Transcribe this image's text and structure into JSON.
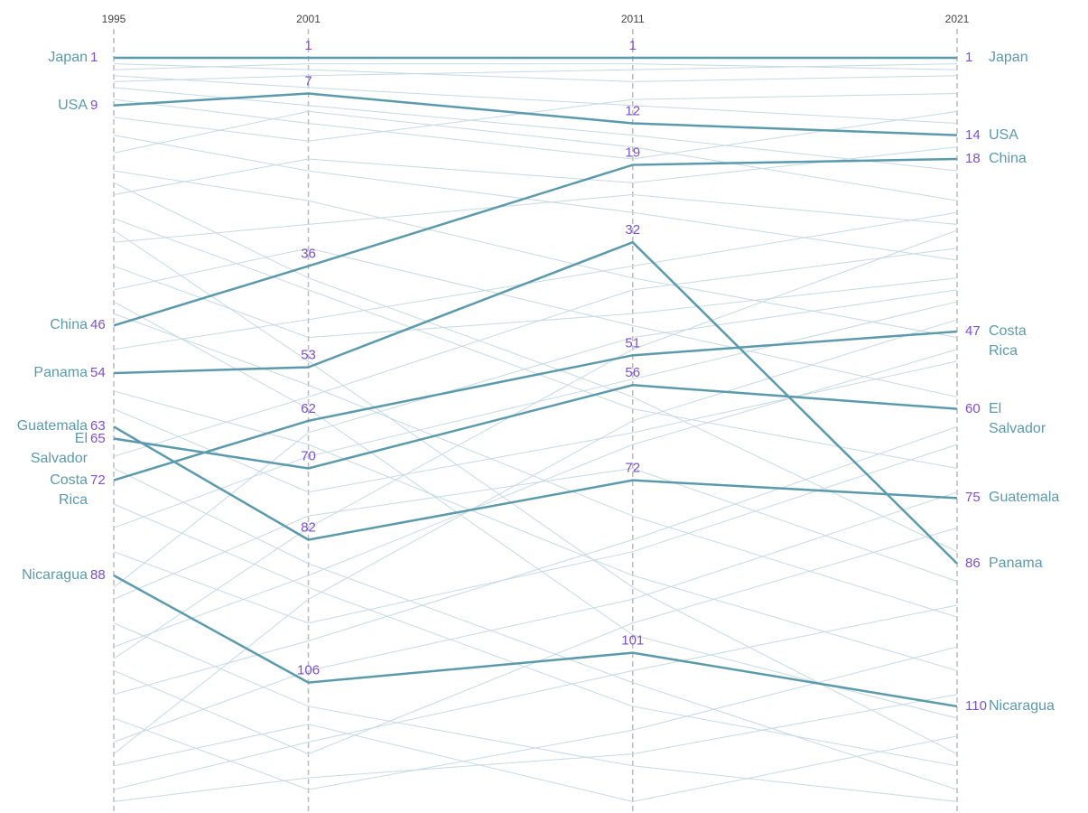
{
  "chart_data": {
    "type": "bump",
    "x": [
      1995,
      2001,
      2011,
      2021
    ],
    "xlim": [
      1995,
      2021
    ],
    "ylim": [
      1,
      128
    ],
    "y_inverted": true,
    "wrap_labels": true,
    "line_color": "#5b9aad",
    "label_color": "#5b9aad",
    "value_color": "#7b4fd1",
    "background_color": "#c5dae3",
    "series": [
      {
        "name": "Japan",
        "values": [
          1,
          1,
          1,
          1
        ]
      },
      {
        "name": "USA",
        "values": [
          9,
          7,
          12,
          14
        ]
      },
      {
        "name": "China",
        "values": [
          46,
          36,
          19,
          18
        ]
      },
      {
        "name": "Panama",
        "values": [
          54,
          53,
          32,
          86
        ]
      },
      {
        "name": "Guatemala",
        "values": [
          63,
          82,
          72,
          75
        ]
      },
      {
        "name": "El Salvador",
        "values": [
          65,
          70,
          56,
          60
        ]
      },
      {
        "name": "Costa Rica",
        "values": [
          72,
          62,
          51,
          47
        ]
      },
      {
        "name": "Nicaragua",
        "values": [
          88,
          106,
          101,
          110
        ]
      }
    ],
    "background_series": [
      {
        "values": [
          2,
          3,
          5,
          4
        ]
      },
      {
        "values": [
          3,
          2,
          2,
          3
        ]
      },
      {
        "values": [
          4,
          6,
          9,
          12
        ]
      },
      {
        "values": [
          5,
          4,
          3,
          2
        ]
      },
      {
        "values": [
          6,
          9,
          14,
          20
        ]
      },
      {
        "values": [
          8,
          12,
          18,
          10
        ]
      },
      {
        "values": [
          11,
          15,
          8,
          7
        ]
      },
      {
        "values": [
          14,
          20,
          27,
          35
        ]
      },
      {
        "values": [
          17,
          10,
          16,
          25
        ]
      },
      {
        "values": [
          20,
          25,
          38,
          48
        ]
      },
      {
        "values": [
          24,
          18,
          22,
          16
        ]
      },
      {
        "values": [
          28,
          40,
          60,
          70
        ]
      },
      {
        "values": [
          32,
          29,
          24,
          29
        ]
      },
      {
        "values": [
          36,
          48,
          44,
          38
        ]
      },
      {
        "values": [
          40,
          33,
          46,
          58
        ]
      },
      {
        "values": [
          44,
          56,
          78,
          95
        ]
      },
      {
        "values": [
          50,
          45,
          36,
          27
        ]
      },
      {
        "values": [
          57,
          66,
          88,
          104
        ]
      },
      {
        "values": [
          60,
          74,
          64,
          52
        ]
      },
      {
        "values": [
          68,
          58,
          40,
          33
        ]
      },
      {
        "values": [
          76,
          90,
          110,
          120
        ]
      },
      {
        "values": [
          80,
          68,
          55,
          42
        ]
      },
      {
        "values": [
          84,
          96,
          84,
          66
        ]
      },
      {
        "values": [
          92,
          78,
          70,
          89
        ]
      },
      {
        "values": [
          96,
          110,
          120,
          126
        ]
      },
      {
        "values": [
          100,
          88,
          66,
          50
        ]
      },
      {
        "values": [
          104,
          118,
          96,
          80
        ]
      },
      {
        "values": [
          108,
          99,
          82,
          63
        ]
      },
      {
        "values": [
          112,
          124,
          114,
          100
        ]
      },
      {
        "values": [
          116,
          104,
          92,
          74
        ]
      },
      {
        "values": [
          120,
          113,
          126,
          115
        ]
      },
      {
        "values": [
          124,
          116,
          104,
          93
        ]
      },
      {
        "values": [
          126,
          122,
          118,
          108
        ]
      },
      {
        "values": [
          22,
          38,
          58,
          84
        ]
      },
      {
        "values": [
          30,
          52,
          90,
          118
        ]
      },
      {
        "values": [
          90,
          64,
          48,
          40
        ]
      },
      {
        "values": [
          118,
          92,
          62,
          45
        ]
      },
      {
        "values": [
          70,
          86,
          106,
          124
        ]
      },
      {
        "values": [
          42,
          60,
          98,
          112
        ]
      },
      {
        "values": [
          102,
          80,
          50,
          30
        ]
      }
    ]
  }
}
